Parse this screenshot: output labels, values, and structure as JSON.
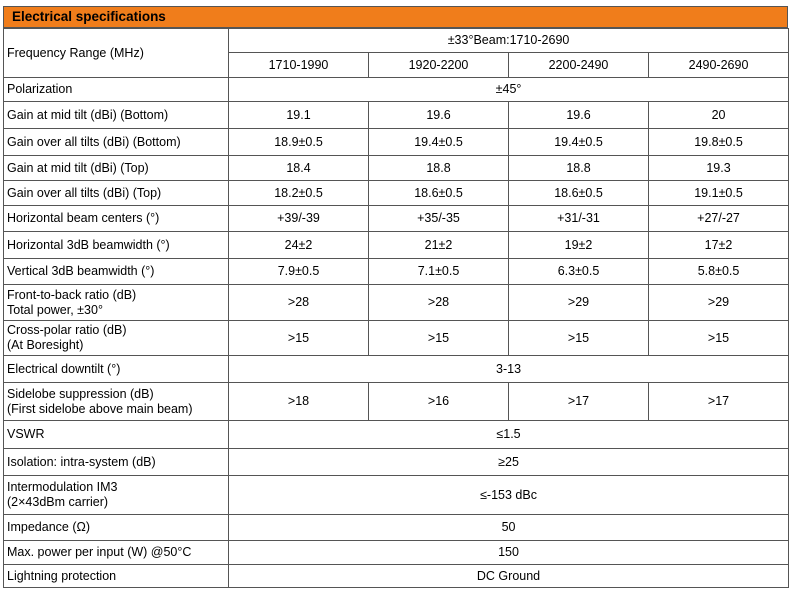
{
  "title": "Electrical specifications",
  "table": {
    "rows": [
      {
        "label": [
          "Frequency Range (MHz)"
        ],
        "span": "±33°Beam:1710-2690",
        "values": [
          "1710-1990",
          "1920-2200",
          "2200-2490",
          "2490-2690"
        ]
      },
      {
        "label": [
          "Polarization"
        ],
        "values": [
          "±45°"
        ]
      },
      {
        "label": [
          "Gain at mid tilt (dBi) (Bottom)"
        ],
        "values": [
          "19.1",
          "19.6",
          "19.6",
          "20"
        ]
      },
      {
        "label": [
          "Gain over all tilts (dBi) (Bottom)"
        ],
        "values": [
          "18.9±0.5",
          "19.4±0.5",
          "19.4±0.5",
          "19.8±0.5"
        ]
      },
      {
        "label": [
          "Gain at mid tilt (dBi) (Top)"
        ],
        "values": [
          "18.4",
          "18.8",
          "18.8",
          "19.3"
        ]
      },
      {
        "label": [
          "Gain over all tilts (dBi) (Top)"
        ],
        "values": [
          "18.2±0.5",
          "18.6±0.5",
          "18.6±0.5",
          "19.1±0.5"
        ]
      },
      {
        "label": [
          "Horizontal beam centers (°)"
        ],
        "values": [
          "+39/-39",
          "+35/-35",
          "+31/-31",
          "+27/-27"
        ]
      },
      {
        "label": [
          "Horizontal 3dB beamwidth (°)"
        ],
        "values": [
          "24±2",
          "21±2",
          "19±2",
          "17±2"
        ]
      },
      {
        "label": [
          "Vertical 3dB beamwidth (°)"
        ],
        "values": [
          "7.9±0.5",
          "7.1±0.5",
          "6.3±0.5",
          "5.8±0.5"
        ]
      },
      {
        "label": [
          "Front-to-back ratio (dB)",
          "Total power, ±30°"
        ],
        "values": [
          ">28",
          ">28",
          ">29",
          ">29"
        ]
      },
      {
        "label": [
          "Cross-polar ratio (dB)",
          "(At Boresight)"
        ],
        "values": [
          ">15",
          ">15",
          ">15",
          ">15"
        ]
      },
      {
        "label": [
          "Electrical downtilt (°)"
        ],
        "values": [
          "3-13"
        ]
      },
      {
        "label": [
          "Sidelobe suppression (dB)",
          "(First sidelobe above main beam)"
        ],
        "values": [
          ">18",
          ">16",
          ">17",
          ">17"
        ]
      },
      {
        "label": [
          "VSWR"
        ],
        "values": [
          "≤1.5"
        ]
      },
      {
        "label": [
          "Isolation: intra-system (dB)"
        ],
        "values": [
          "≥25"
        ]
      },
      {
        "label": [
          "Intermodulation IM3",
          "(2×43dBm carrier)"
        ],
        "values": [
          "≤-153 dBc"
        ]
      },
      {
        "label": [
          "Impedance (Ω)"
        ],
        "values": [
          "50"
        ]
      },
      {
        "label": [
          "Max. power per input (W) @50°C"
        ],
        "values": [
          "150"
        ]
      },
      {
        "label": [
          "Lightning protection"
        ],
        "values": [
          "DC Ground"
        ]
      }
    ]
  }
}
